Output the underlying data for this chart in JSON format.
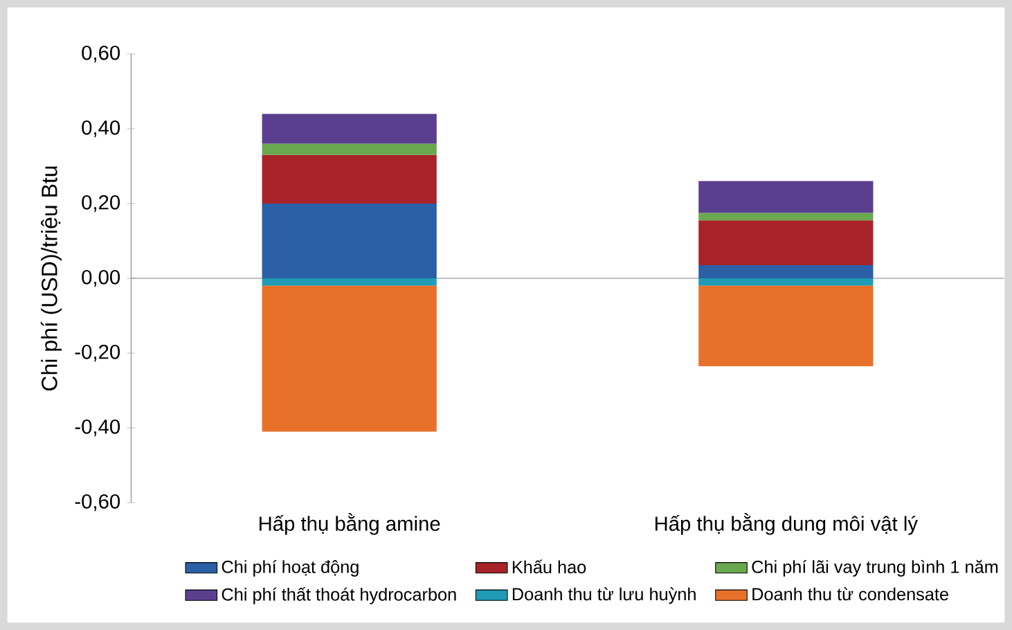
{
  "chart_data": {
    "type": "bar",
    "stacked": true,
    "ylabel": "Chi phí (USD)/triệu Btu",
    "categories": [
      "Hấp thụ bằng amine",
      "Hấp thụ bằng dung môi vật lý"
    ],
    "series": [
      {
        "name": "Chi phí hoạt động",
        "color": "#2b5fa6",
        "values": [
          0.2,
          0.035
        ]
      },
      {
        "name": "Khấu hao",
        "color": "#a82328",
        "values": [
          0.13,
          0.12
        ]
      },
      {
        "name": "Chi phí lãi vay trung bình 1 năm",
        "color": "#6aa84f",
        "values": [
          0.03,
          0.02
        ]
      },
      {
        "name": "Chi phí thất thoát hydrocarbon",
        "color": "#5b3f8f",
        "values": [
          0.08,
          0.085
        ]
      },
      {
        "name": "Doanh thu từ lưu huỳnh",
        "color": "#1f9bb6",
        "values": [
          -0.02,
          -0.02
        ]
      },
      {
        "name": "Doanh thu từ condensate",
        "color": "#e8712a",
        "values": [
          -0.39,
          -0.215
        ]
      }
    ],
    "ylim": [
      -0.6,
      0.6
    ],
    "yticks": [
      {
        "value": -0.6,
        "label": "-0,60"
      },
      {
        "value": -0.4,
        "label": "-0,40"
      },
      {
        "value": -0.2,
        "label": "-0,20"
      },
      {
        "value": 0,
        "label": "0,00"
      },
      {
        "value": 0.2,
        "label": "0,20"
      },
      {
        "value": 0.4,
        "label": "0,40"
      },
      {
        "value": 0.6,
        "label": "0,60"
      }
    ],
    "legend": "bottom"
  }
}
